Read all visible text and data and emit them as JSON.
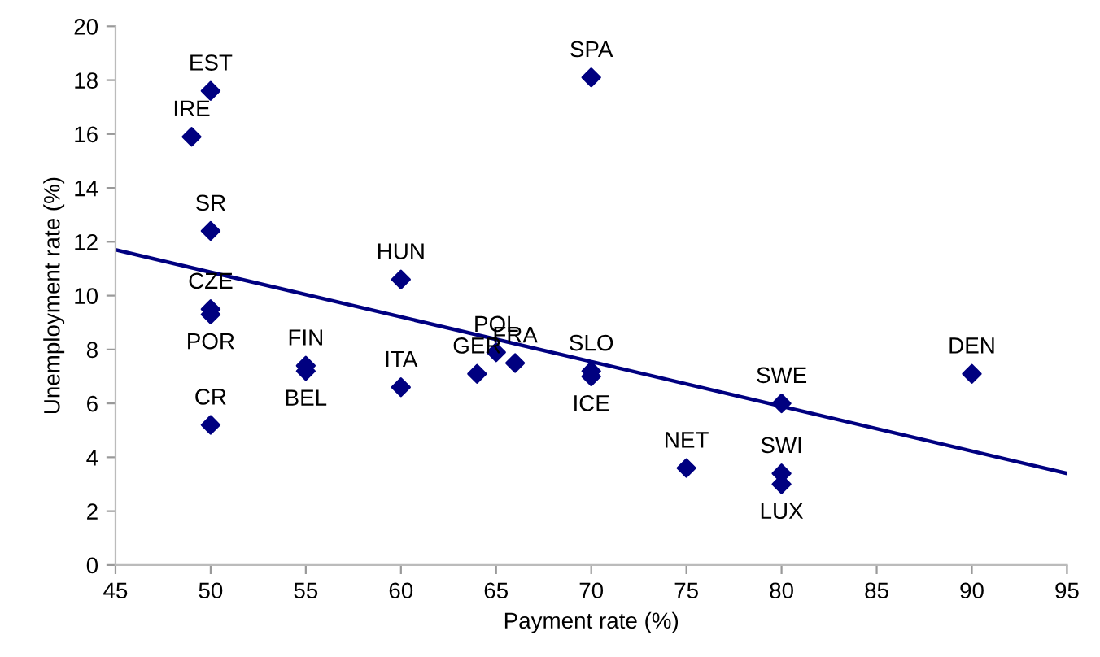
{
  "chart_data": {
    "type": "scatter",
    "xlabel": "Payment rate (%)",
    "ylabel": "Unemployment rate (%)",
    "xlim": [
      45,
      95
    ],
    "xticks": [
      45,
      50,
      55,
      60,
      65,
      70,
      75,
      80,
      85,
      90,
      95
    ],
    "ylim": [
      0,
      20
    ],
    "yticks": [
      0,
      2,
      4,
      6,
      8,
      10,
      12,
      14,
      16,
      18,
      20
    ],
    "grid": false,
    "series": [
      {
        "color": "#000080",
        "marker": "diamond",
        "x": [
          50,
          49,
          50,
          50,
          50,
          50,
          55,
          55,
          60,
          60,
          64,
          65,
          66,
          70,
          70,
          70,
          75,
          80,
          80,
          80,
          90
        ],
        "values": [
          17.6,
          15.9,
          12.4,
          9.5,
          9.3,
          5.2,
          7.4,
          7.2,
          10.6,
          6.6,
          7.1,
          7.9,
          7.5,
          18.1,
          7.2,
          7.0,
          3.6,
          6.0,
          3.4,
          3.0,
          7.1
        ]
      },
      {
        "type": "line",
        "color": "#000080",
        "marker": "none",
        "line_style": "solid",
        "x": [
          45,
          95
        ],
        "values": [
          11.7,
          3.4
        ]
      }
    ],
    "annotations": [
      {
        "text": "EST",
        "x": 50,
        "y": 17.6
      },
      {
        "text": "IRE",
        "x": 49,
        "y": 15.9
      },
      {
        "text": "SR",
        "x": 50,
        "y": 12.4
      },
      {
        "text": "CZE",
        "x": 50,
        "y": 9.5
      },
      {
        "text": "POR",
        "x": 50,
        "y": 9.3
      },
      {
        "text": "CR",
        "x": 50,
        "y": 5.2
      },
      {
        "text": "FIN",
        "x": 55,
        "y": 7.4
      },
      {
        "text": "BEL",
        "x": 55,
        "y": 7.2
      },
      {
        "text": "HUN",
        "x": 60,
        "y": 10.6
      },
      {
        "text": "ITA",
        "x": 60,
        "y": 6.6
      },
      {
        "text": "GER",
        "x": 64,
        "y": 7.1
      },
      {
        "text": "POL",
        "x": 65,
        "y": 7.9
      },
      {
        "text": "FRA",
        "x": 66,
        "y": 7.5
      },
      {
        "text": "SPA",
        "x": 70,
        "y": 18.1
      },
      {
        "text": "SLO",
        "x": 70,
        "y": 7.2
      },
      {
        "text": "ICE",
        "x": 70,
        "y": 7.0
      },
      {
        "text": "NET",
        "x": 75,
        "y": 3.6
      },
      {
        "text": "SWE",
        "x": 80,
        "y": 6.0
      },
      {
        "text": "SWI",
        "x": 80,
        "y": 3.4
      },
      {
        "text": "LUX",
        "x": 80,
        "y": 3.0
      },
      {
        "text": "DEN",
        "x": 90,
        "y": 7.1
      }
    ]
  }
}
